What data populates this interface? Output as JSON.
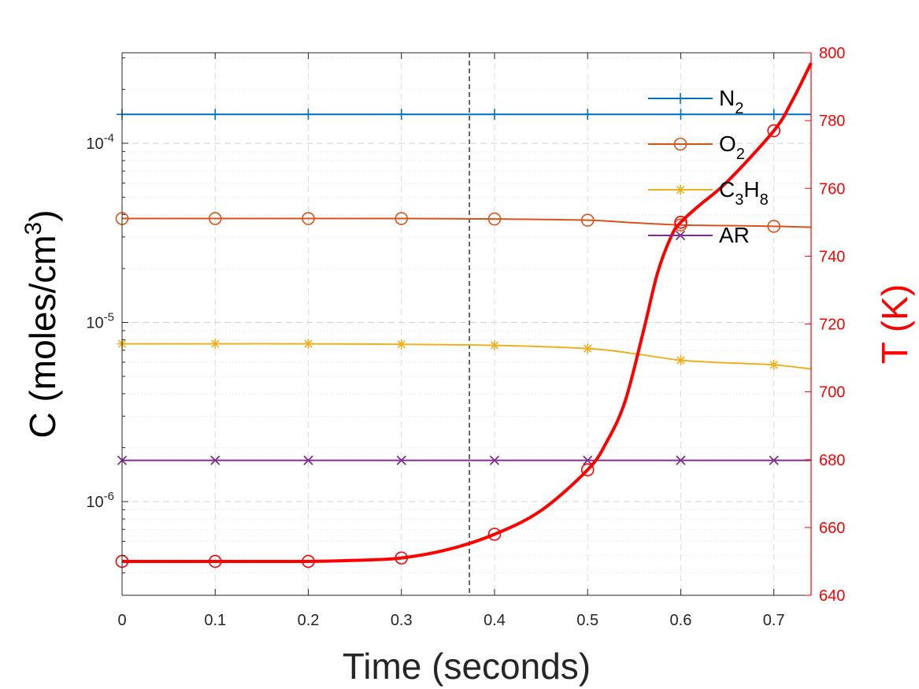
{
  "chart_data": {
    "type": "line",
    "x_label": "Time (seconds)",
    "y_label_left": {
      "base": "C (moles/cm",
      "sup": "3",
      "end": ")"
    },
    "y_label_right": "T (K)",
    "x_range": [
      0,
      0.74
    ],
    "x_ticks": [
      "0",
      "0.1",
      "0.2",
      "0.3",
      "0.4",
      "0.5",
      "0.6",
      "0.7"
    ],
    "y_left_scale": "log",
    "y_left_range": [
      3e-07,
      0.00032
    ],
    "y_left_ticks": [
      {
        "base": "10",
        "exp": "-6",
        "value": 1e-06
      },
      {
        "base": "10",
        "exp": "-5",
        "value": 1e-05
      },
      {
        "base": "10",
        "exp": "-4",
        "value": 0.0001
      }
    ],
    "y_right_range": [
      640,
      800
    ],
    "y_right_ticks": [
      "640",
      "660",
      "680",
      "700",
      "720",
      "740",
      "760",
      "780",
      "800"
    ],
    "grid": true,
    "vertical_marker_x": 0.373,
    "legend_position": "top-right",
    "series": [
      {
        "legend": {
          "main": "N",
          "sub": "2"
        },
        "color": "#0072BD",
        "marker": "plus",
        "axis": "left",
        "x": [
          0,
          0.1,
          0.2,
          0.3,
          0.4,
          0.5,
          0.6,
          0.7,
          0.74
        ],
        "y": [
          0.000145,
          0.000145,
          0.000145,
          0.000145,
          0.000145,
          0.000145,
          0.000145,
          0.000145,
          0.000145
        ],
        "marker_x": [
          0,
          0.1,
          0.2,
          0.3,
          0.4,
          0.5,
          0.6,
          0.7
        ]
      },
      {
        "legend": {
          "main": "O",
          "sub": "2"
        },
        "color": "#D95319",
        "marker": "circle",
        "axis": "left",
        "x": [
          0,
          0.1,
          0.2,
          0.3,
          0.4,
          0.5,
          0.55,
          0.6,
          0.65,
          0.7,
          0.74
        ],
        "y": [
          3.8e-05,
          3.8e-05,
          3.8e-05,
          3.8e-05,
          3.78e-05,
          3.72e-05,
          3.6e-05,
          3.5e-05,
          3.47e-05,
          3.44e-05,
          3.4e-05
        ],
        "marker_x": [
          0,
          0.1,
          0.2,
          0.3,
          0.4,
          0.5,
          0.6,
          0.7
        ]
      },
      {
        "legend": {
          "main": "C",
          "sub": "3",
          "main2": "H",
          "sub2": "8"
        },
        "color": "#EDB120",
        "marker": "asterisk",
        "axis": "left",
        "x": [
          0,
          0.1,
          0.2,
          0.3,
          0.4,
          0.5,
          0.55,
          0.6,
          0.65,
          0.7,
          0.74
        ],
        "y": [
          7.6e-06,
          7.6e-06,
          7.6e-06,
          7.55e-06,
          7.45e-06,
          7.15e-06,
          6.7e-06,
          6.15e-06,
          5.95e-06,
          5.8e-06,
          5.5e-06
        ],
        "marker_x": [
          0,
          0.1,
          0.2,
          0.3,
          0.4,
          0.5,
          0.6,
          0.7
        ]
      },
      {
        "legend": {
          "main": "AR"
        },
        "color": "#7E2F8E",
        "marker": "x",
        "axis": "left",
        "x": [
          0,
          0.1,
          0.2,
          0.3,
          0.4,
          0.5,
          0.6,
          0.7,
          0.74
        ],
        "y": [
          1.7e-06,
          1.7e-06,
          1.7e-06,
          1.7e-06,
          1.7e-06,
          1.7e-06,
          1.7e-06,
          1.7e-06,
          1.7e-06
        ],
        "marker_x": [
          0,
          0.1,
          0.2,
          0.3,
          0.4,
          0.5,
          0.6,
          0.7
        ]
      },
      {
        "legend": null,
        "color": "#FF0000",
        "marker": "circle",
        "axis": "right",
        "x": [
          0,
          0.1,
          0.2,
          0.25,
          0.3,
          0.35,
          0.4,
          0.45,
          0.5,
          0.52,
          0.54,
          0.56,
          0.575,
          0.59,
          0.6,
          0.62,
          0.65,
          0.7,
          0.72,
          0.74
        ],
        "y": [
          650,
          650,
          650,
          650.3,
          651,
          653.5,
          658,
          665,
          677,
          685,
          697,
          718,
          735,
          746,
          750,
          755,
          762,
          777,
          786,
          797
        ],
        "marker_x": [
          0,
          0.1,
          0.2,
          0.3,
          0.4,
          0.5,
          0.6,
          0.7
        ]
      }
    ]
  }
}
